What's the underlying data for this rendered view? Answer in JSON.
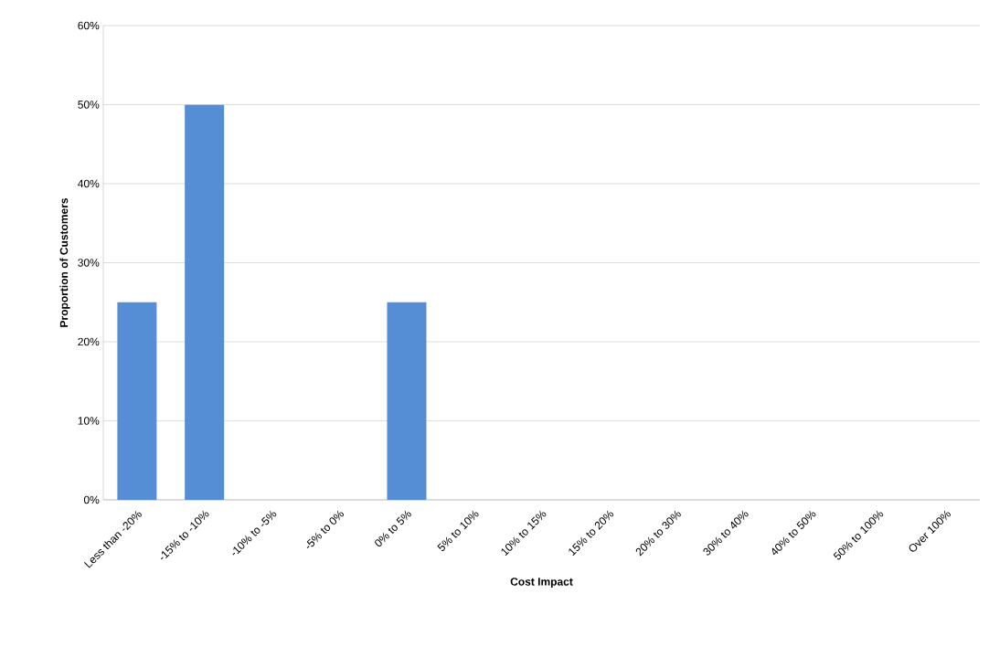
{
  "chart_data": {
    "type": "bar",
    "xlabel": "Cost Impact",
    "ylabel": "Proportion of Customers",
    "categories": [
      "Less than -20%",
      "-15% to -10%",
      "-10% to -5%",
      "-5% to 0%",
      "0% to 5%",
      "5% to 10%",
      "10% to 15%",
      "15% to 20%",
      "20% to 30%",
      "30% to 40%",
      "40% to 50%",
      "50% to 100%",
      "Over 100%"
    ],
    "values": [
      25,
      50,
      0,
      0,
      25,
      0,
      0,
      0,
      0,
      0,
      0,
      0,
      0
    ],
    "color": "#558ed5",
    "ylim": [
      0,
      60
    ],
    "yticks": [
      {
        "value": 0,
        "label": "0%"
      },
      {
        "value": 10,
        "label": "10%"
      },
      {
        "value": 20,
        "label": "20%"
      },
      {
        "value": 30,
        "label": "30%"
      },
      {
        "value": 40,
        "label": "40%"
      },
      {
        "value": 50,
        "label": "50%"
      },
      {
        "value": 60,
        "label": "60%"
      }
    ],
    "grid": "y"
  }
}
